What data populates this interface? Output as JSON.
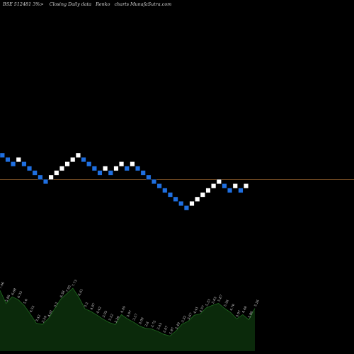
{
  "header": {
    "symbol": "BSE 512481 3%>",
    "subtitle": "Closing Daily data",
    "chart_kind": "Renko",
    "site": "charts MunafaSutra.com"
  },
  "colors": {
    "background": "#000000",
    "up_brick": "#ffffff",
    "down_brick": "#1f6fe0",
    "reference_line": "#8b5a2b",
    "volume_fill": "#0b2a0b",
    "volume_edge": "#1f6b1f",
    "text": "#cfcfcf"
  },
  "chart_data": {
    "type": "renko",
    "brick_directions": [
      "down",
      "down",
      "down",
      "up",
      "down",
      "down",
      "down",
      "down",
      "down",
      "up",
      "up",
      "up",
      "up",
      "up",
      "up",
      "down",
      "down",
      "down",
      "down",
      "up",
      "down",
      "up",
      "up",
      "down",
      "up",
      "down",
      "down",
      "down",
      "down",
      "down",
      "down",
      "down",
      "down",
      "down",
      "down",
      "up",
      "up",
      "up",
      "up",
      "up",
      "up",
      "down",
      "down",
      "up",
      "down",
      "up"
    ],
    "brick_levels": [
      0,
      1,
      2,
      1,
      2,
      3,
      4,
      5,
      6,
      5,
      4,
      3,
      2,
      1,
      0,
      1,
      2,
      3,
      4,
      3,
      4,
      3,
      2,
      3,
      2,
      3,
      4,
      5,
      6,
      7,
      8,
      9,
      10,
      11,
      12,
      11,
      10,
      9,
      8,
      7,
      6,
      7,
      8,
      7,
      8,
      7
    ],
    "reference_level": 5.5,
    "volume_labels": [
      "7.46",
      "5.86",
      "6.68",
      "6.33",
      "5.6",
      "4.55",
      "3.42",
      "3.29",
      "4.01",
      "5.2",
      "6.38",
      "7.05",
      "7.73",
      "6.61",
      "5.2",
      "4.87",
      "4.42",
      "3.93",
      "3.52",
      "3.26",
      "4.49",
      "3.97",
      "3.57",
      "3.09",
      "2.8",
      "2.72",
      "2.43",
      "2.07",
      "1.87",
      "2.49",
      "3.32",
      "3.67",
      "4.41",
      "4.57",
      "5.33",
      "5.63",
      "5.87",
      "5.26",
      "4.76",
      "3.97",
      "4.48",
      "3.86",
      "5.26"
    ],
    "volume_values": [
      7.46,
      5.86,
      6.68,
      6.33,
      5.6,
      4.55,
      3.42,
      3.29,
      4.01,
      5.2,
      6.38,
      7.05,
      7.73,
      6.61,
      5.2,
      4.87,
      4.42,
      3.93,
      3.52,
      3.26,
      4.49,
      3.97,
      3.57,
      3.09,
      2.8,
      2.72,
      2.43,
      2.07,
      1.87,
      2.49,
      3.32,
      3.67,
      4.41,
      4.57,
      5.33,
      5.63,
      5.87,
      5.26,
      4.76,
      3.97,
      4.48,
      3.86,
      5.26
    ]
  }
}
